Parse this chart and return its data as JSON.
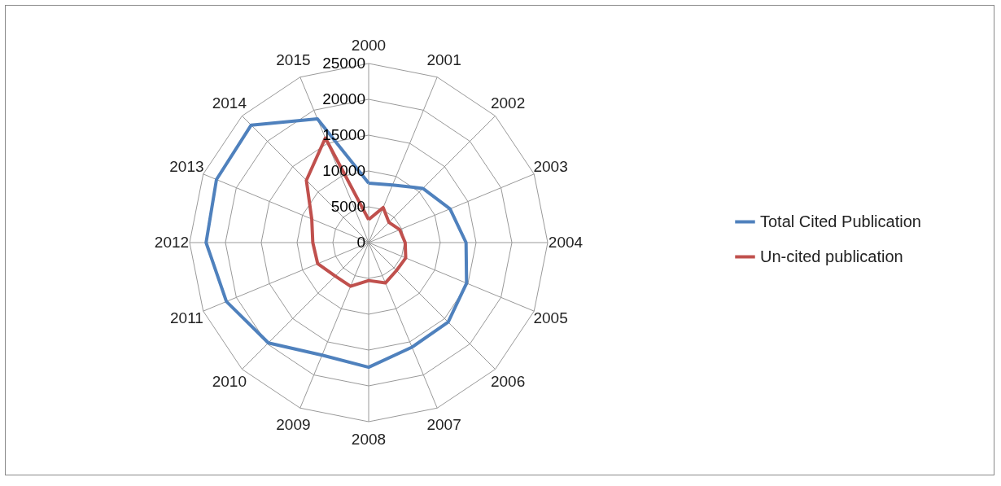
{
  "chart_data": {
    "type": "radar",
    "categories": [
      "2000",
      "2001",
      "2002",
      "2003",
      "2004",
      "2005",
      "2006",
      "2007",
      "2008",
      "2009",
      "2010",
      "2011",
      "2012",
      "2013",
      "2014",
      "2015"
    ],
    "series": [
      {
        "name": "Total Cited Publication",
        "color": "#4f81bd",
        "values": [
          8300,
          8700,
          10700,
          12300,
          13600,
          14800,
          15700,
          15800,
          17400,
          17000,
          19800,
          21500,
          22700,
          23000,
          23200,
          18700
        ]
      },
      {
        "name": "Un-cited publication",
        "color": "#c0504d",
        "values": [
          3200,
          5300,
          4000,
          4700,
          5100,
          5600,
          5500,
          6100,
          5300,
          6600,
          6600,
          7700,
          7800,
          8600,
          12300,
          15800
        ]
      }
    ],
    "ylim": [
      0,
      25000
    ],
    "yticks": [
      0,
      5000,
      10000,
      15000,
      20000,
      25000
    ],
    "grid": true,
    "legend": "right"
  }
}
